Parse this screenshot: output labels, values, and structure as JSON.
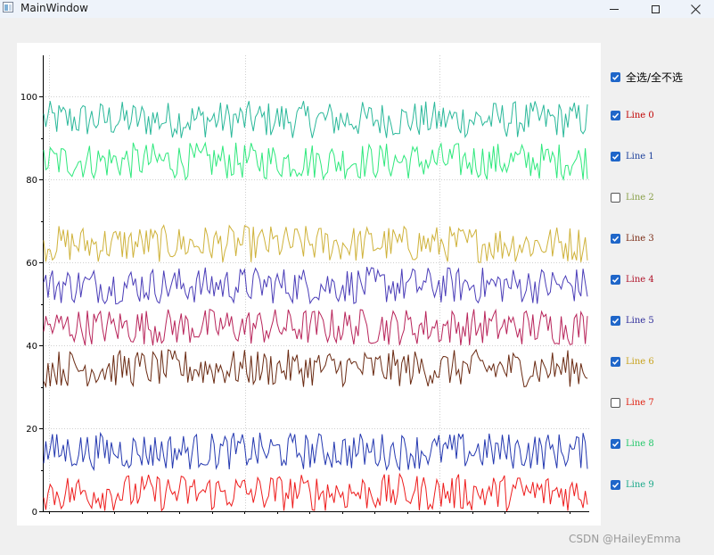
{
  "window": {
    "title": "MainWindow"
  },
  "legend": {
    "select_all": {
      "label": "全选/全不选",
      "checked": true
    },
    "items": [
      {
        "label": "Line 0",
        "checked": true,
        "color": "#c00000"
      },
      {
        "label": "Line 1",
        "checked": true,
        "color": "#1c3f9a"
      },
      {
        "label": "Line 2",
        "checked": false,
        "color": "#8aa04a"
      },
      {
        "label": "Line 3",
        "checked": true,
        "color": "#7a2a14"
      },
      {
        "label": "Line 4",
        "checked": true,
        "color": "#b0142a"
      },
      {
        "label": "Line 5",
        "checked": true,
        "color": "#2e2c9a"
      },
      {
        "label": "Line 6",
        "checked": true,
        "color": "#c8a21c"
      },
      {
        "label": "Line 7",
        "checked": false,
        "color": "#e02010"
      },
      {
        "label": "Line 8",
        "checked": true,
        "color": "#22c86a"
      },
      {
        "label": "Line 9",
        "checked": true,
        "color": "#18a888"
      }
    ]
  },
  "chart_data": {
    "type": "line",
    "ylim": [
      0,
      110
    ],
    "y_ticks": [
      "0",
      "20",
      "40",
      "60",
      "80",
      "100"
    ],
    "grid": true,
    "series": [
      {
        "name": "Line 9",
        "color": "#2ab89a",
        "band": [
          90,
          99
        ]
      },
      {
        "name": "Line 8",
        "color": "#2ee87c",
        "band": [
          80,
          89
        ]
      },
      {
        "name": "Line 6",
        "color": "#cfb23a",
        "band": [
          60,
          69
        ]
      },
      {
        "name": "Line 5",
        "color": "#4a3db8",
        "band": [
          50,
          59
        ]
      },
      {
        "name": "Line 4",
        "color": "#b8245a",
        "band": [
          40,
          49
        ]
      },
      {
        "name": "Line 3",
        "color": "#6a2a12",
        "band": [
          30,
          39
        ]
      },
      {
        "name": "Line 1",
        "color": "#2438b0",
        "band": [
          10,
          19
        ]
      },
      {
        "name": "Line 0",
        "color": "#ee1c1c",
        "band": [
          0,
          9
        ]
      }
    ]
  },
  "footer": {
    "watermark": "CSDN @HaileyEmma"
  }
}
